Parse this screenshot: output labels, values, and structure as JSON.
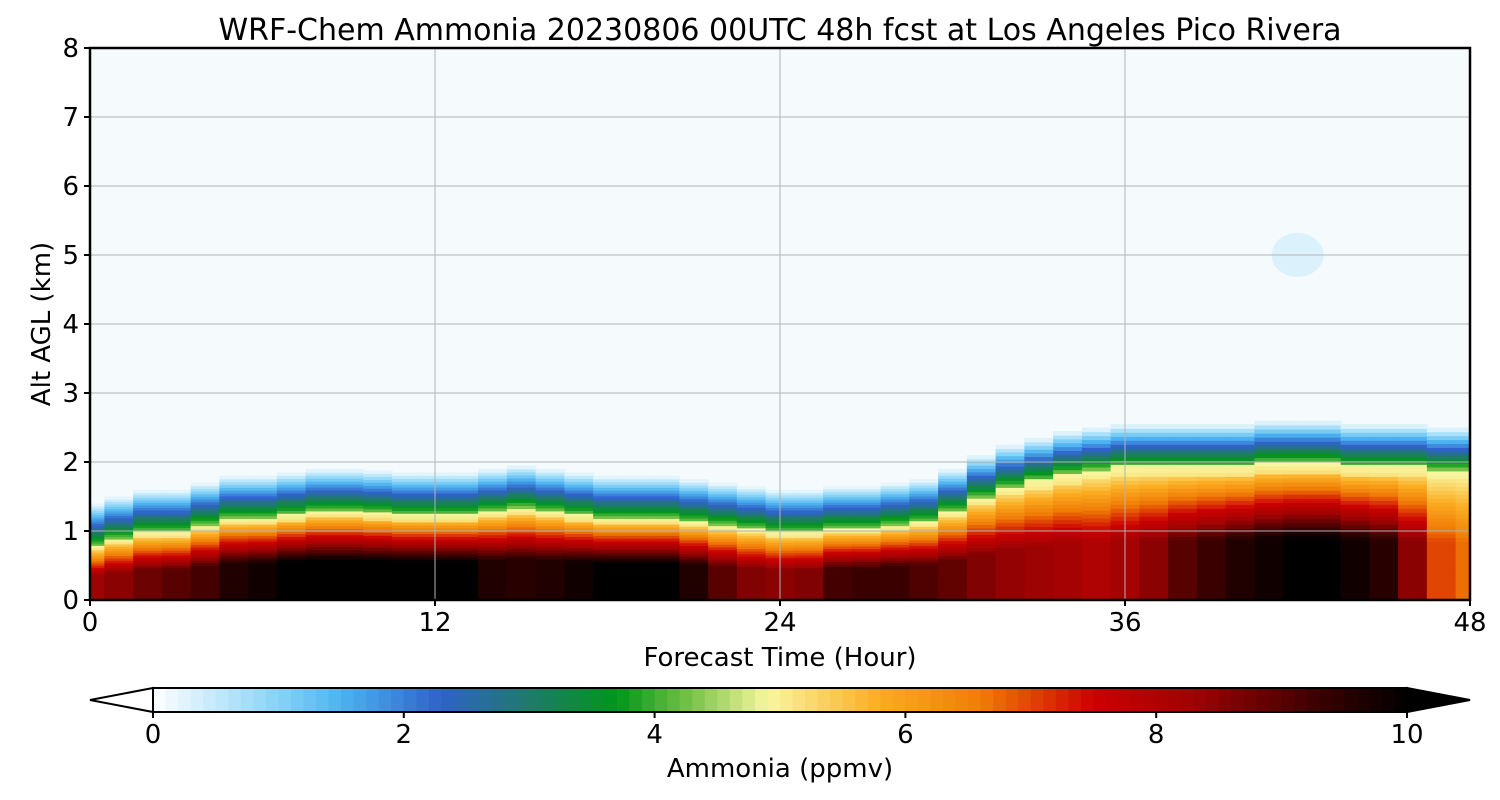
{
  "chart_data": {
    "type": "heatmap",
    "title": "WRF-Chem Ammonia  20230806 00UTC 48h fcst at Los Angeles Pico Rivera",
    "xlabel": "Forecast Time (Hour)",
    "ylabel": "Alt AGL (km)",
    "xlim": [
      0,
      48
    ],
    "ylim": [
      0,
      8
    ],
    "xticks": [
      0,
      12,
      24,
      36,
      48
    ],
    "yticks": [
      0,
      1,
      2,
      3,
      4,
      5,
      6,
      7,
      8
    ],
    "grid": true,
    "colorbar": {
      "label": "Ammonia  (ppmv)",
      "ticks": [
        0,
        2,
        4,
        6,
        8,
        10
      ],
      "range": [
        0,
        10
      ],
      "extend": "both",
      "stops": [
        {
          "v": 0.0,
          "c": "#ffffff"
        },
        {
          "v": 1.0,
          "c": "#87d3f7"
        },
        {
          "v": 1.5,
          "c": "#4cb3f0"
        },
        {
          "v": 2.3,
          "c": "#2f62c8"
        },
        {
          "v": 3.0,
          "c": "#1f7a6a"
        },
        {
          "v": 3.7,
          "c": "#00961a"
        },
        {
          "v": 4.3,
          "c": "#7bc44a"
        },
        {
          "v": 4.9,
          "c": "#f9f6a0"
        },
        {
          "v": 5.8,
          "c": "#fbac21"
        },
        {
          "v": 6.6,
          "c": "#f07c06"
        },
        {
          "v": 7.5,
          "c": "#cc0000"
        },
        {
          "v": 8.3,
          "c": "#9e0303"
        },
        {
          "v": 9.3,
          "c": "#3a0000"
        },
        {
          "v": 10.0,
          "c": "#000000"
        }
      ]
    },
    "series": [
      {
        "name": "Ammonia column profile",
        "x": [
          0,
          1,
          2,
          3,
          4,
          5,
          6,
          7,
          8,
          9,
          10,
          11,
          12,
          13,
          14,
          15,
          16,
          17,
          18,
          19,
          20,
          21,
          22,
          23,
          24,
          25,
          26,
          27,
          28,
          29,
          30,
          31,
          32,
          33,
          34,
          35,
          36,
          37,
          38,
          39,
          40,
          41,
          42,
          43,
          44,
          45,
          46,
          47,
          48
        ],
        "surface_ppmv": [
          8.3,
          8.5,
          8.8,
          9.0,
          9.2,
          9.6,
          9.8,
          10.0,
          10.0,
          10.0,
          10.0,
          10.0,
          10.0,
          10.0,
          9.6,
          9.5,
          9.6,
          9.8,
          10.0,
          10.0,
          10.0,
          9.6,
          9.0,
          8.6,
          8.5,
          8.6,
          9.2,
          9.3,
          9.3,
          9.1,
          8.9,
          8.6,
          8.4,
          8.3,
          8.2,
          8.0,
          8.2,
          8.5,
          9.0,
          9.3,
          9.6,
          9.8,
          10.0,
          10.0,
          9.8,
          9.5,
          8.5,
          7.0,
          6.7
        ],
        "mixing_height_km": [
          0.8,
          0.9,
          1.0,
          1.0,
          1.1,
          1.2,
          1.2,
          1.25,
          1.3,
          1.3,
          1.28,
          1.25,
          1.25,
          1.25,
          1.3,
          1.35,
          1.3,
          1.25,
          1.2,
          1.2,
          1.2,
          1.15,
          1.1,
          1.05,
          1.0,
          1.0,
          1.05,
          1.05,
          1.1,
          1.15,
          1.3,
          1.5,
          1.65,
          1.75,
          1.85,
          1.9,
          1.95,
          1.95,
          1.95,
          1.95,
          1.95,
          2.0,
          2.0,
          2.0,
          1.95,
          1.95,
          1.95,
          1.9,
          1.9
        ]
      }
    ],
    "annotations": [
      {
        "x": 42,
        "y": 5.0,
        "value_ppmv": 0.15
      }
    ]
  }
}
